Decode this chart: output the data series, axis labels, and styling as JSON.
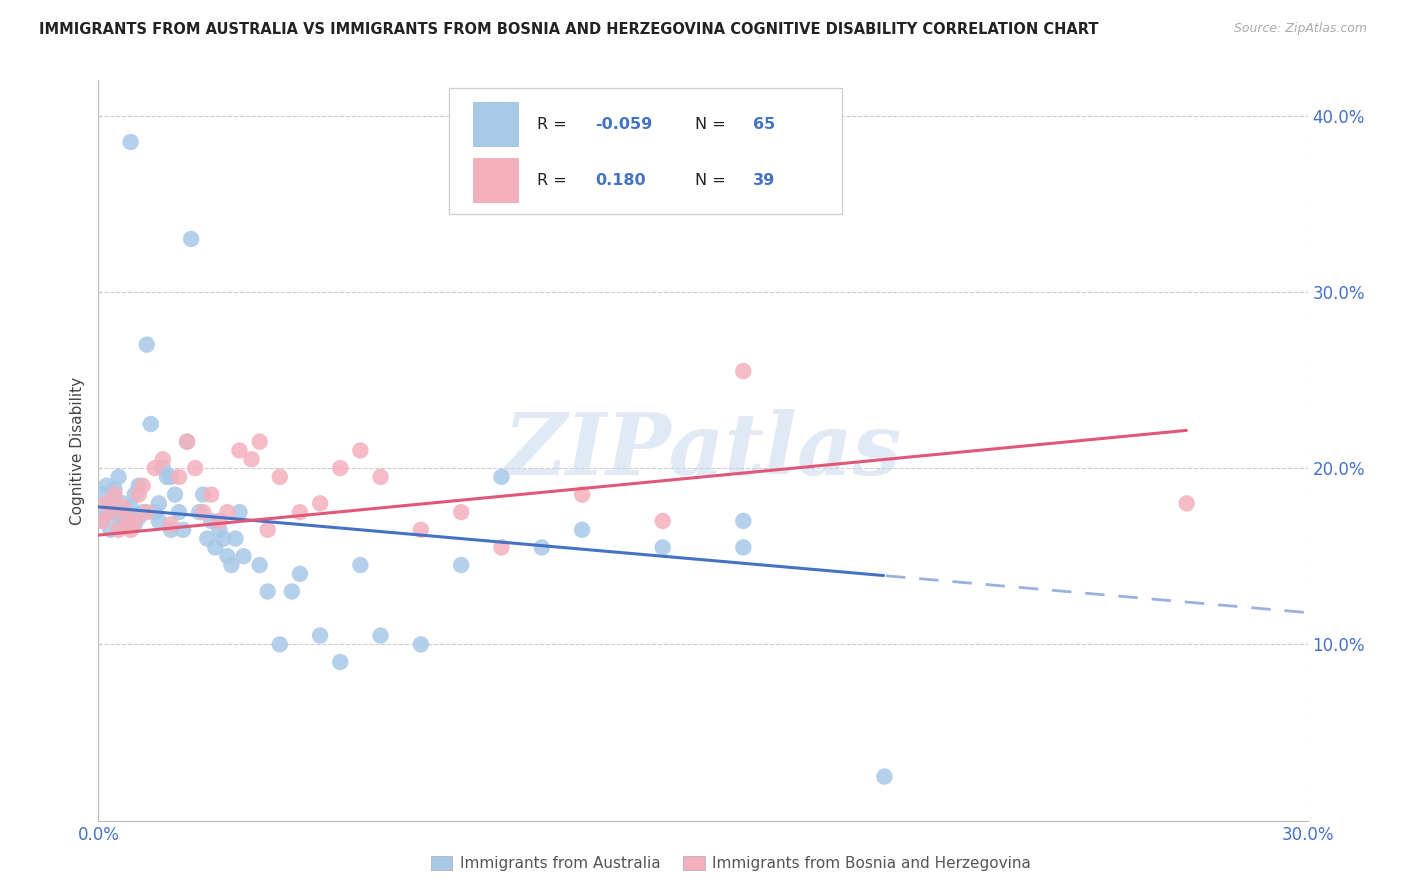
{
  "title": "IMMIGRANTS FROM AUSTRALIA VS IMMIGRANTS FROM BOSNIA AND HERZEGOVINA COGNITIVE DISABILITY CORRELATION CHART",
  "source": "Source: ZipAtlas.com",
  "ylabel": "Cognitive Disability",
  "aus_label": "Immigrants from Australia",
  "bos_label": "Immigrants from Bosnia and Herzegovina",
  "aus_R": -0.059,
  "aus_N": 65,
  "bos_R": 0.18,
  "bos_N": 39,
  "aus_color": "#a8c8e8",
  "aus_line_color": "#4472c4",
  "bos_color": "#f4b0bc",
  "bos_line_color": "#e05878",
  "xmin": 0.0,
  "xmax": 0.3,
  "ymin": 0.0,
  "ymax": 0.42,
  "axis_color": "#4472c4",
  "grid_color": "#cccccc",
  "title_color": "#222222",
  "source_color": "#aaaaaa",
  "ylabel_color": "#444444",
  "legend_label_color": "#222222",
  "legend_value_color": "#4472c4",
  "bottom_legend_color": "#555555",
  "watermark_color": "#c8d8ec",
  "aus_x": [
    0.001,
    0.001,
    0.002,
    0.002,
    0.003,
    0.003,
    0.004,
    0.004,
    0.005,
    0.005,
    0.006,
    0.006,
    0.007,
    0.007,
    0.008,
    0.008,
    0.009,
    0.009,
    0.01,
    0.01,
    0.011,
    0.012,
    0.013,
    0.014,
    0.015,
    0.016,
    0.017,
    0.018,
    0.019,
    0.02,
    0.021,
    0.022,
    0.023,
    0.015,
    0.018,
    0.025,
    0.026,
    0.027,
    0.028,
    0.029,
    0.03,
    0.031,
    0.032,
    0.033,
    0.034,
    0.035,
    0.036,
    0.04,
    0.042,
    0.045,
    0.048,
    0.05,
    0.055,
    0.06,
    0.065,
    0.07,
    0.08,
    0.09,
    0.1,
    0.11,
    0.12,
    0.14,
    0.16,
    0.16,
    0.195
  ],
  "aus_y": [
    0.17,
    0.185,
    0.175,
    0.19,
    0.18,
    0.165,
    0.175,
    0.188,
    0.172,
    0.195,
    0.168,
    0.18,
    0.175,
    0.17,
    0.385,
    0.178,
    0.168,
    0.185,
    0.172,
    0.19,
    0.175,
    0.27,
    0.225,
    0.175,
    0.18,
    0.2,
    0.195,
    0.165,
    0.185,
    0.175,
    0.165,
    0.215,
    0.33,
    0.17,
    0.195,
    0.175,
    0.185,
    0.16,
    0.17,
    0.155,
    0.165,
    0.16,
    0.15,
    0.145,
    0.16,
    0.175,
    0.15,
    0.145,
    0.13,
    0.1,
    0.13,
    0.14,
    0.105,
    0.09,
    0.145,
    0.105,
    0.1,
    0.145,
    0.195,
    0.155,
    0.165,
    0.155,
    0.17,
    0.155,
    0.025
  ],
  "bos_x": [
    0.001,
    0.002,
    0.003,
    0.004,
    0.005,
    0.006,
    0.007,
    0.008,
    0.009,
    0.01,
    0.011,
    0.012,
    0.014,
    0.016,
    0.018,
    0.02,
    0.022,
    0.024,
    0.026,
    0.028,
    0.03,
    0.032,
    0.035,
    0.038,
    0.04,
    0.042,
    0.045,
    0.05,
    0.055,
    0.06,
    0.065,
    0.07,
    0.08,
    0.09,
    0.1,
    0.12,
    0.14,
    0.16,
    0.27
  ],
  "bos_y": [
    0.17,
    0.18,
    0.175,
    0.185,
    0.165,
    0.178,
    0.172,
    0.165,
    0.17,
    0.185,
    0.19,
    0.175,
    0.2,
    0.205,
    0.168,
    0.195,
    0.215,
    0.2,
    0.175,
    0.185,
    0.17,
    0.175,
    0.21,
    0.205,
    0.215,
    0.165,
    0.195,
    0.175,
    0.18,
    0.2,
    0.21,
    0.195,
    0.165,
    0.175,
    0.155,
    0.185,
    0.17,
    0.255,
    0.18
  ]
}
